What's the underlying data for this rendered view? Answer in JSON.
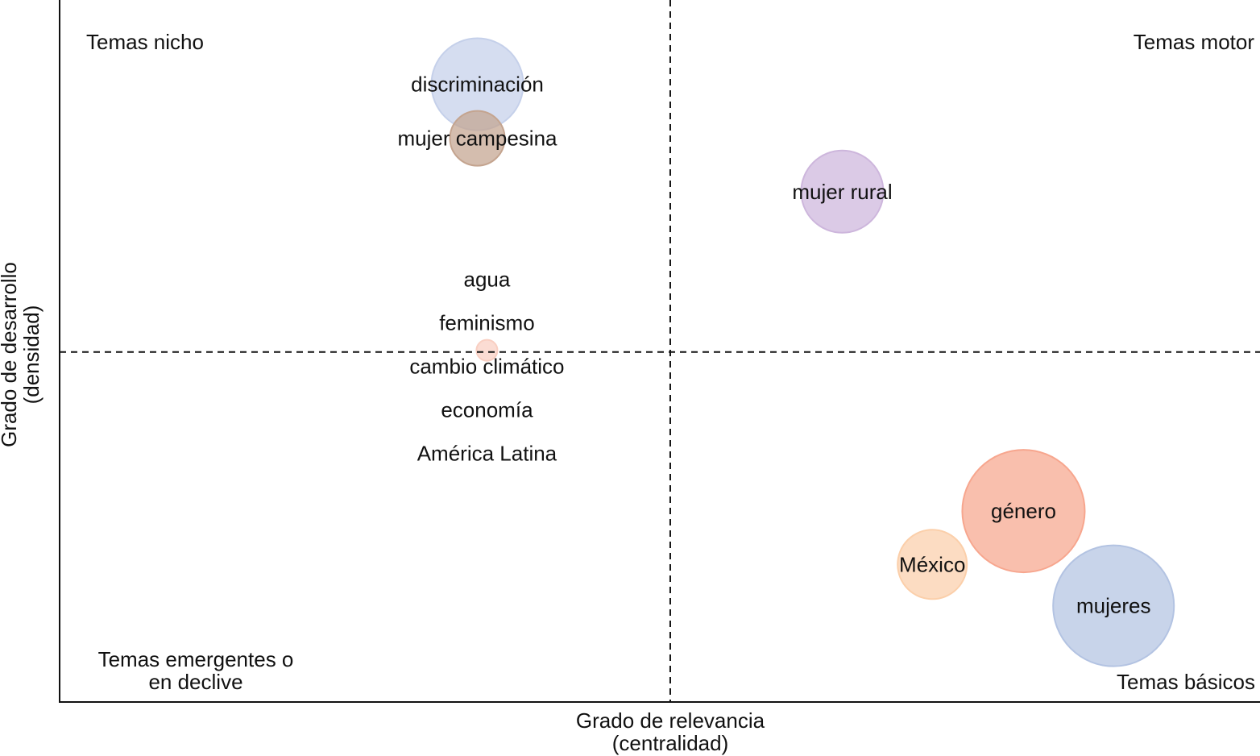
{
  "chart_data": {
    "type": "scatter",
    "subtype": "bubble",
    "title": "",
    "xlabel": [
      "Grado de relevancia",
      "(centralidad)"
    ],
    "ylabel": [
      "Grado de desarrollo",
      "(densidad)"
    ],
    "xlim": [
      0,
      1
    ],
    "ylim": [
      0,
      1
    ],
    "divider_x": 0.5087,
    "divider_y": 0.4985,
    "grid": false,
    "legend": "none",
    "quadrant_labels": {
      "top_left": [
        "Temas nicho"
      ],
      "top_right": [
        "Temas motor"
      ],
      "bottom_left": [
        "Temas emergentes o",
        "en declive"
      ],
      "bottom_right": [
        "Temas básicos"
      ]
    },
    "points": [
      {
        "label": "discriminación",
        "x": 0.348,
        "y": 0.88,
        "size": 57,
        "color": "#c5d0ea"
      },
      {
        "label": "mujer campesina",
        "x": 0.348,
        "y": 0.803,
        "size": 34,
        "color": "#c4a48f"
      },
      {
        "label": "mujer rural",
        "x": 0.652,
        "y": 0.727,
        "size": 51,
        "color": "#cdb6dc"
      },
      {
        "label": "agua",
        "x": 0.356,
        "y": 0.501,
        "size": 0,
        "color": "#f7c9bb"
      },
      {
        "label": "feminismo",
        "x": 0.356,
        "y": 0.501,
        "size": 0,
        "color": "#f7c9bb"
      },
      {
        "label": "cambio climático",
        "x": 0.356,
        "y": 0.501,
        "size": 13,
        "color": "#f9cfc2"
      },
      {
        "label": "economía",
        "x": 0.356,
        "y": 0.501,
        "size": 0,
        "color": "#f7c9bb"
      },
      {
        "label": "América Latina",
        "x": 0.356,
        "y": 0.501,
        "size": 0,
        "color": "#f7c9bb"
      },
      {
        "label": "género",
        "x": 0.803,
        "y": 0.272,
        "size": 76,
        "color": "#f7a68e"
      },
      {
        "label": "México",
        "x": 0.727,
        "y": 0.196,
        "size": 43,
        "color": "#fbcfaa"
      },
      {
        "label": "mujeres",
        "x": 0.878,
        "y": 0.137,
        "size": 75,
        "color": "#b3c3e2"
      }
    ]
  }
}
